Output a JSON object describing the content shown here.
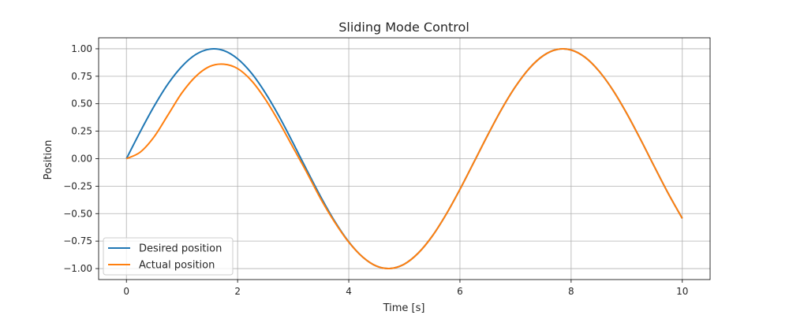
{
  "chart_data": {
    "type": "line",
    "title": "Sliding Mode Control",
    "xlabel": "Time [s]",
    "ylabel": "Position",
    "xlim": [
      -0.5,
      10.5
    ],
    "ylim": [
      -1.1,
      1.1
    ],
    "grid": true,
    "legend_position": "lower-left",
    "x_ticks": [
      {
        "value": 0,
        "label": "0"
      },
      {
        "value": 2,
        "label": "2"
      },
      {
        "value": 4,
        "label": "4"
      },
      {
        "value": 6,
        "label": "6"
      },
      {
        "value": 8,
        "label": "8"
      },
      {
        "value": 10,
        "label": "10"
      }
    ],
    "y_ticks": [
      {
        "value": 1.0,
        "label": "1.00"
      },
      {
        "value": 0.75,
        "label": "0.75"
      },
      {
        "value": 0.5,
        "label": "0.50"
      },
      {
        "value": 0.25,
        "label": "0.25"
      },
      {
        "value": 0.0,
        "label": "0.00"
      },
      {
        "value": -0.25,
        "label": "−0.25"
      },
      {
        "value": -0.5,
        "label": "−0.50"
      },
      {
        "value": -0.75,
        "label": "−0.75"
      },
      {
        "value": -1.0,
        "label": "−1.00"
      }
    ],
    "series": [
      {
        "name": "Desired position",
        "color": "#1f77b4",
        "x": [
          0,
          0.25,
          0.5,
          0.75,
          1.0,
          1.25,
          1.5,
          1.75,
          2.0,
          2.25,
          2.5,
          2.75,
          3.0,
          3.25,
          3.5,
          3.75,
          4.0,
          4.25,
          4.5,
          4.75,
          5.0,
          5.25,
          5.5,
          5.75,
          6.0,
          6.25,
          6.5,
          6.75,
          7.0,
          7.25,
          7.5,
          7.75,
          8.0,
          8.25,
          8.5,
          8.75,
          9.0,
          9.25,
          9.5,
          9.75,
          10.0
        ],
        "y": [
          0.0,
          0.247,
          0.479,
          0.682,
          0.841,
          0.949,
          0.997,
          0.984,
          0.909,
          0.778,
          0.598,
          0.382,
          0.141,
          -0.108,
          -0.351,
          -0.572,
          -0.757,
          -0.895,
          -0.978,
          -0.999,
          -0.959,
          -0.859,
          -0.706,
          -0.508,
          -0.279,
          -0.033,
          0.215,
          0.451,
          0.657,
          0.823,
          0.938,
          0.994,
          0.989,
          0.923,
          0.798,
          0.625,
          0.412,
          0.174,
          -0.075,
          -0.319,
          -0.544
        ]
      },
      {
        "name": "Actual position",
        "color": "#ff7f0e",
        "x": [
          0,
          0.25,
          0.5,
          0.75,
          1.0,
          1.25,
          1.5,
          1.75,
          2.0,
          2.25,
          2.5,
          2.75,
          3.0,
          3.25,
          3.5,
          3.75,
          4.0,
          4.25,
          4.5,
          4.75,
          5.0,
          5.25,
          5.5,
          5.75,
          6.0,
          6.25,
          6.5,
          6.75,
          7.0,
          7.25,
          7.5,
          7.75,
          8.0,
          8.25,
          8.5,
          8.75,
          9.0,
          9.25,
          9.5,
          9.75,
          10.0
        ],
        "y": [
          0.0,
          0.06,
          0.2,
          0.4,
          0.6,
          0.75,
          0.84,
          0.86,
          0.82,
          0.71,
          0.54,
          0.33,
          0.1,
          -0.13,
          -0.37,
          -0.58,
          -0.76,
          -0.895,
          -0.978,
          -0.999,
          -0.959,
          -0.859,
          -0.706,
          -0.508,
          -0.279,
          -0.033,
          0.215,
          0.451,
          0.657,
          0.823,
          0.938,
          0.994,
          0.989,
          0.923,
          0.798,
          0.625,
          0.412,
          0.174,
          -0.075,
          -0.319,
          -0.544
        ]
      }
    ]
  }
}
